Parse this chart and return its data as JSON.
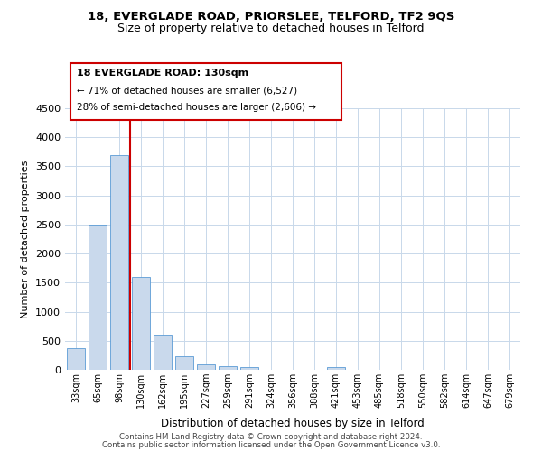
{
  "title1": "18, EVERGLADE ROAD, PRIORSLEE, TELFORD, TF2 9QS",
  "title2": "Size of property relative to detached houses in Telford",
  "xlabel": "Distribution of detached houses by size in Telford",
  "ylabel": "Number of detached properties",
  "bar_labels": [
    "33sqm",
    "65sqm",
    "98sqm",
    "130sqm",
    "162sqm",
    "195sqm",
    "227sqm",
    "259sqm",
    "291sqm",
    "324sqm",
    "356sqm",
    "388sqm",
    "421sqm",
    "453sqm",
    "485sqm",
    "518sqm",
    "550sqm",
    "582sqm",
    "614sqm",
    "647sqm",
    "679sqm"
  ],
  "bar_values": [
    380,
    2500,
    3700,
    1600,
    600,
    240,
    100,
    55,
    50,
    0,
    0,
    0,
    50,
    0,
    0,
    0,
    0,
    0,
    0,
    0,
    0
  ],
  "bar_color": "#c9d9ec",
  "bar_edge_color": "#5b9bd5",
  "vline_x": 2.5,
  "vline_color": "#cc0000",
  "ylim": [
    0,
    4500
  ],
  "yticks": [
    0,
    500,
    1000,
    1500,
    2000,
    2500,
    3000,
    3500,
    4000,
    4500
  ],
  "annotation_title": "18 EVERGLADE ROAD: 130sqm",
  "annotation_line1": "← 71% of detached houses are smaller (6,527)",
  "annotation_line2": "28% of semi-detached houses are larger (2,606) →",
  "annotation_box_color": "#ffffff",
  "annotation_box_edge": "#cc0000",
  "footer1": "Contains HM Land Registry data © Crown copyright and database right 2024.",
  "footer2": "Contains public sector information licensed under the Open Government Licence v3.0.",
  "background_color": "#ffffff",
  "grid_color": "#c8d8ea"
}
